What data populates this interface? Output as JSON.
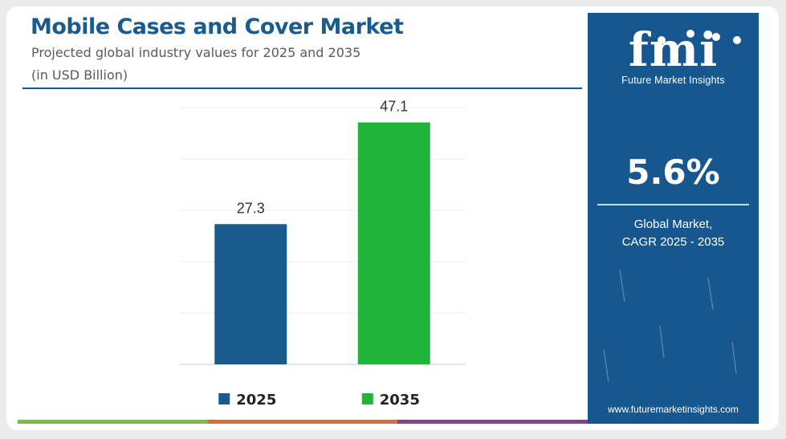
{
  "header": {
    "title": "Mobile Cases and Cover Market",
    "subtitle": "Projected global industry values for 2025 and 2035",
    "unit": "(in USD Billion)"
  },
  "chart_data": {
    "type": "bar",
    "title": "Mobile Cases and Cover Market",
    "categories": [
      "2025",
      "2035"
    ],
    "values": [
      27.3,
      47.1
    ],
    "value_labels": [
      "27.3",
      "47.1"
    ],
    "colors": [
      "#1a5b8e",
      "#1fb53a"
    ],
    "ylim": [
      0,
      50
    ],
    "grid": true,
    "legend": {
      "position": "bottom",
      "items": [
        {
          "label": "2025",
          "color": "#1a5b8e"
        },
        {
          "label": "2035",
          "color": "#1fb53a"
        }
      ]
    }
  },
  "sidebar": {
    "logo_text": "fmi",
    "brand": "Future Market Insights",
    "cagr_value": "5.6%",
    "cagr_label_line1": "Global Market,",
    "cagr_label_line2": "CAGR 2025 - 2035",
    "website": "www.futuremarketinsights.com"
  },
  "decor": {
    "bottom_bar_colors": [
      "#7dbb42",
      "#e0693a",
      "#8a3f8f"
    ]
  }
}
